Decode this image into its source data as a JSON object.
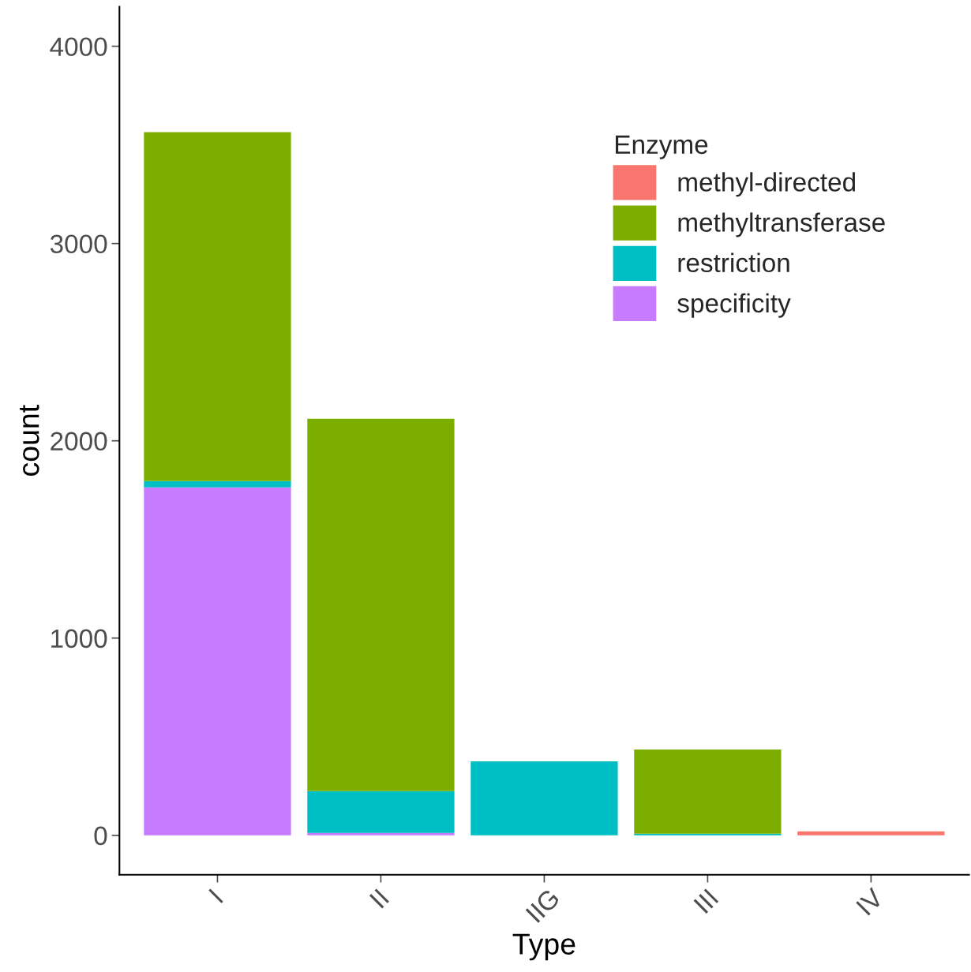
{
  "chart_data": {
    "type": "bar",
    "stacked": true,
    "xlabel": "Type",
    "ylabel": "count",
    "legend_title": "Enzyme",
    "legend": "top right",
    "grid": false,
    "categories": [
      "I",
      "II",
      "IIG",
      "III",
      "IV"
    ],
    "series": [
      {
        "name": "specificity",
        "color": "#c77cff",
        "values": [
          1764,
          12,
          0,
          0,
          0
        ]
      },
      {
        "name": "restriction",
        "color": "#00bfc4",
        "values": [
          32,
          212,
          375,
          8,
          0
        ]
      },
      {
        "name": "methyltransferase",
        "color": "#7cae00",
        "values": [
          1769,
          1888,
          0,
          427,
          0
        ]
      },
      {
        "name": "methyl-directed",
        "color": "#f8766d",
        "values": [
          0,
          0,
          0,
          0,
          20
        ]
      }
    ],
    "ylim": [
      -200,
      4200
    ],
    "yticks": [
      0,
      1000,
      2000,
      3000,
      4000
    ]
  }
}
